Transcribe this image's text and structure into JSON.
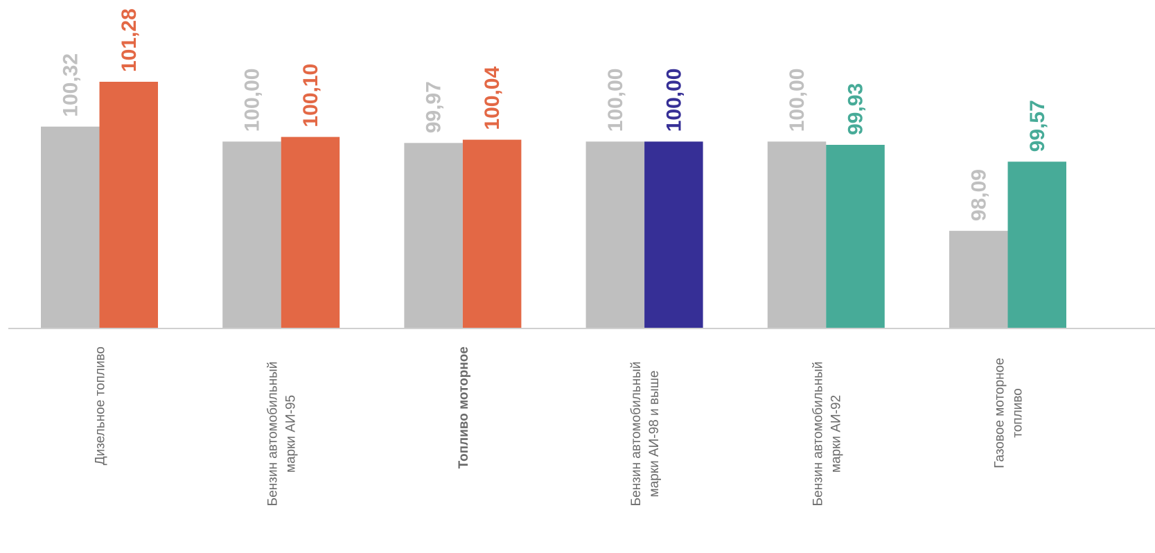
{
  "chart_data": {
    "type": "bar",
    "categories": [
      [
        "Дизельное топливо"
      ],
      [
        "Бензин автомобильный",
        "марки АИ-95"
      ],
      [
        "Топливо моторное"
      ],
      [
        "Бензин автомобильный",
        "марки АИ-98 и выше"
      ],
      [
        "Бензин автомобильный",
        "марки АИ-92"
      ],
      [
        "Газовое моторное",
        "топливо"
      ]
    ],
    "bold_category_index": 2,
    "series": [
      {
        "values": [
          100.32,
          100.0,
          99.97,
          100.0,
          100.0,
          98.09
        ],
        "labels": [
          "100,32",
          "100,00",
          "99,97",
          "100,00",
          "100,00",
          "98,09"
        ],
        "colors": [
          "#bfbfbf",
          "#bfbfbf",
          "#bfbfbf",
          "#bfbfbf",
          "#bfbfbf",
          "#bfbfbf"
        ]
      },
      {
        "values": [
          101.28,
          100.1,
          100.04,
          100.0,
          99.93,
          99.57
        ],
        "labels": [
          "101,28",
          "100,10",
          "100,04",
          "100,00",
          "99,93",
          "99,57"
        ],
        "colors": [
          "#e36845",
          "#e36845",
          "#e36845",
          "#362f96",
          "#47ab98",
          "#47ab98"
        ]
      }
    ],
    "label_colors": {
      "gray": "#c0c0c0",
      "orange": "#e36845",
      "blue": "#362f96",
      "teal": "#47ab98"
    },
    "axis_color": "#d0d0d0",
    "grid": false,
    "legend": "none",
    "ylim": [
      96.0,
      101.28
    ]
  }
}
